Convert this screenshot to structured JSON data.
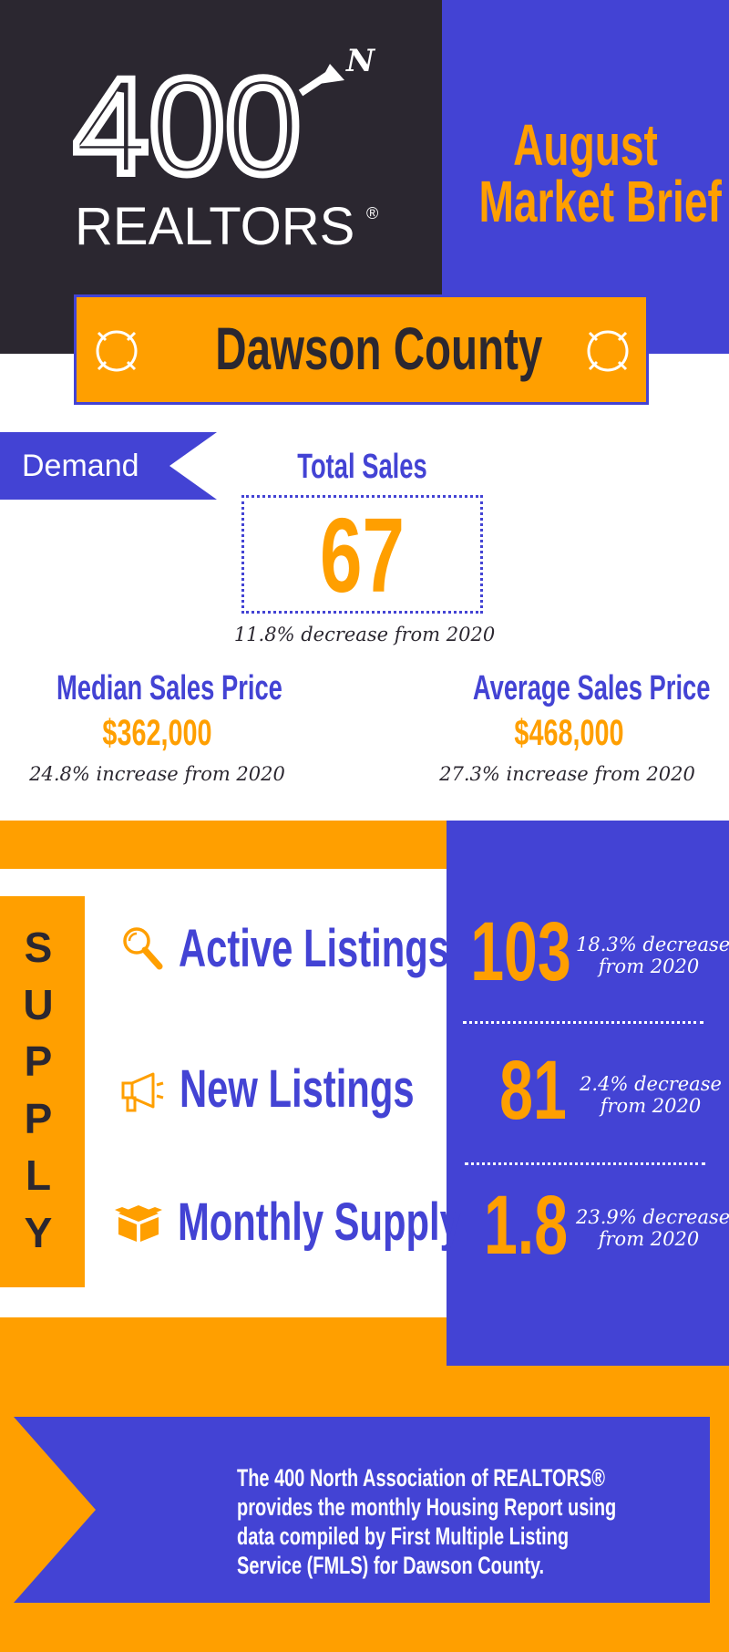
{
  "header": {
    "logo_number": "400",
    "logo_superscript": "N",
    "logo_word": "REALTORS",
    "logo_reg": "®",
    "brief_line1": "August",
    "brief_line2": "Market Brief"
  },
  "county": {
    "name": "Dawson County"
  },
  "demand": {
    "section_label": "Demand",
    "total_sales": {
      "label": "Total Sales",
      "value": "67",
      "change": "11.8% decrease from 2020"
    },
    "median_price": {
      "label": "Median Sales Price",
      "value": "$362,000",
      "change": "24.8% increase from 2020"
    },
    "average_price": {
      "label": "Average Sales Price",
      "value": "$468,000",
      "change": "27.3% increase from 2020"
    }
  },
  "supply": {
    "section_label": "SUPPLY",
    "items": [
      {
        "label": "Active Listings",
        "value": "103",
        "change_line1": "18.3% decrease",
        "change_line2": "from 2020",
        "icon": "magnifier-icon"
      },
      {
        "label": "New Listings",
        "value": "81",
        "change_line1": "2.4% decrease",
        "change_line2": "from 2020",
        "icon": "megaphone-icon"
      },
      {
        "label": "Monthly Supply",
        "value": "1.8",
        "change_line1": "23.9% decrease",
        "change_line2": "from 2020",
        "icon": "box-icon"
      }
    ]
  },
  "footer": {
    "text": "The 400 North Association of REALTORS® provides the monthly Housing Report using data compiled by First Multiple Listing Service (FMLS) for Dawson County."
  },
  "colors": {
    "orange": "#ff9f00",
    "blue": "#4343d4",
    "dark": "#2b2730",
    "white": "#ffffff"
  }
}
